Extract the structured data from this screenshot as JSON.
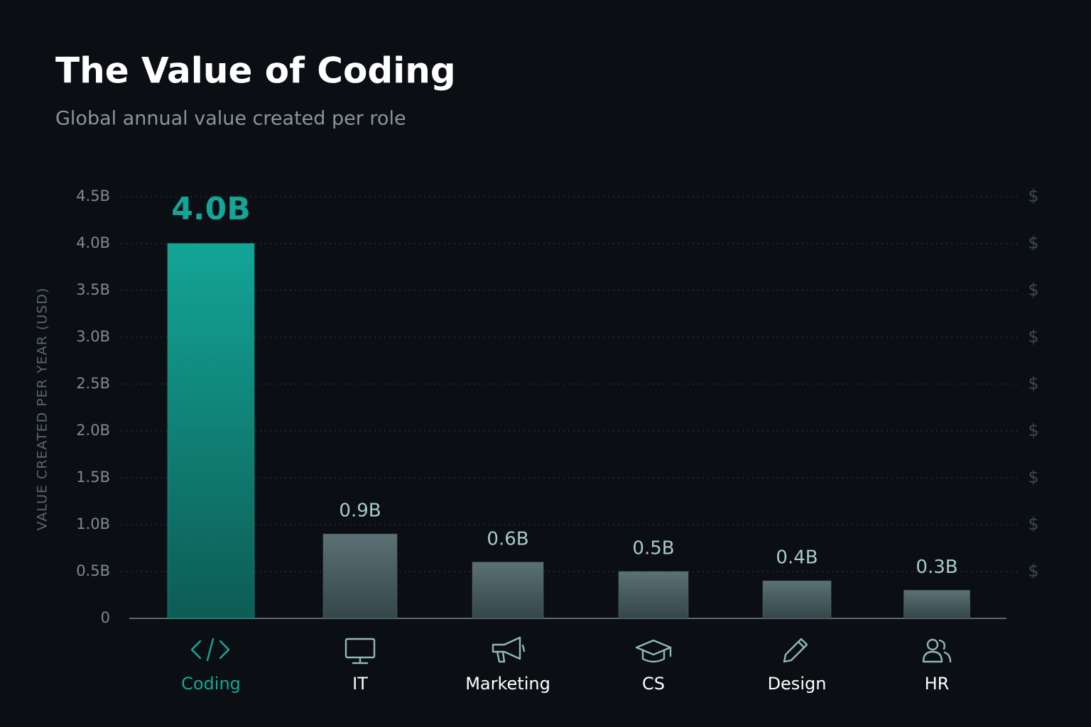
{
  "chart_data": {
    "type": "bar",
    "title": "The Value of Coding",
    "subtitle": "Global annual value created per role",
    "y_label": "VALUE CREATED PER YEAR (USD)",
    "categories": [
      "Coding",
      "IT",
      "Marketing",
      "CS",
      "Design",
      "HR"
    ],
    "values": [
      4.0,
      0.9,
      0.6,
      0.5,
      0.4,
      0.3
    ],
    "value_labels": [
      "4.0B",
      "0.9B",
      "0.6B",
      "0.5B",
      "0.4B",
      "0.3B"
    ],
    "colors": [
      "#13a596",
      "#52676a",
      "#52676a",
      "#52676a",
      "#52676a",
      "#52676a"
    ],
    "ylim": [
      0,
      4.5
    ],
    "yticks": [
      0,
      {
        "value": 0.5,
        "label": "0.5B"
      },
      {
        "value": 1.0,
        "label": "1.0B"
      },
      {
        "value": 1.5,
        "label": "1.5B"
      },
      {
        "value": 2.0,
        "label": "2.0B"
      },
      {
        "value": 2.5,
        "label": "2.5B"
      },
      {
        "value": 3.0,
        "label": "3.0B"
      },
      {
        "value": 3.5,
        "label": "3.5B"
      },
      {
        "value": 4.0,
        "label": "4.0B"
      },
      {
        "value": 4.5,
        "label": "4.5B"
      }
    ],
    "right_tick_label": "$",
    "grid": true
  }
}
